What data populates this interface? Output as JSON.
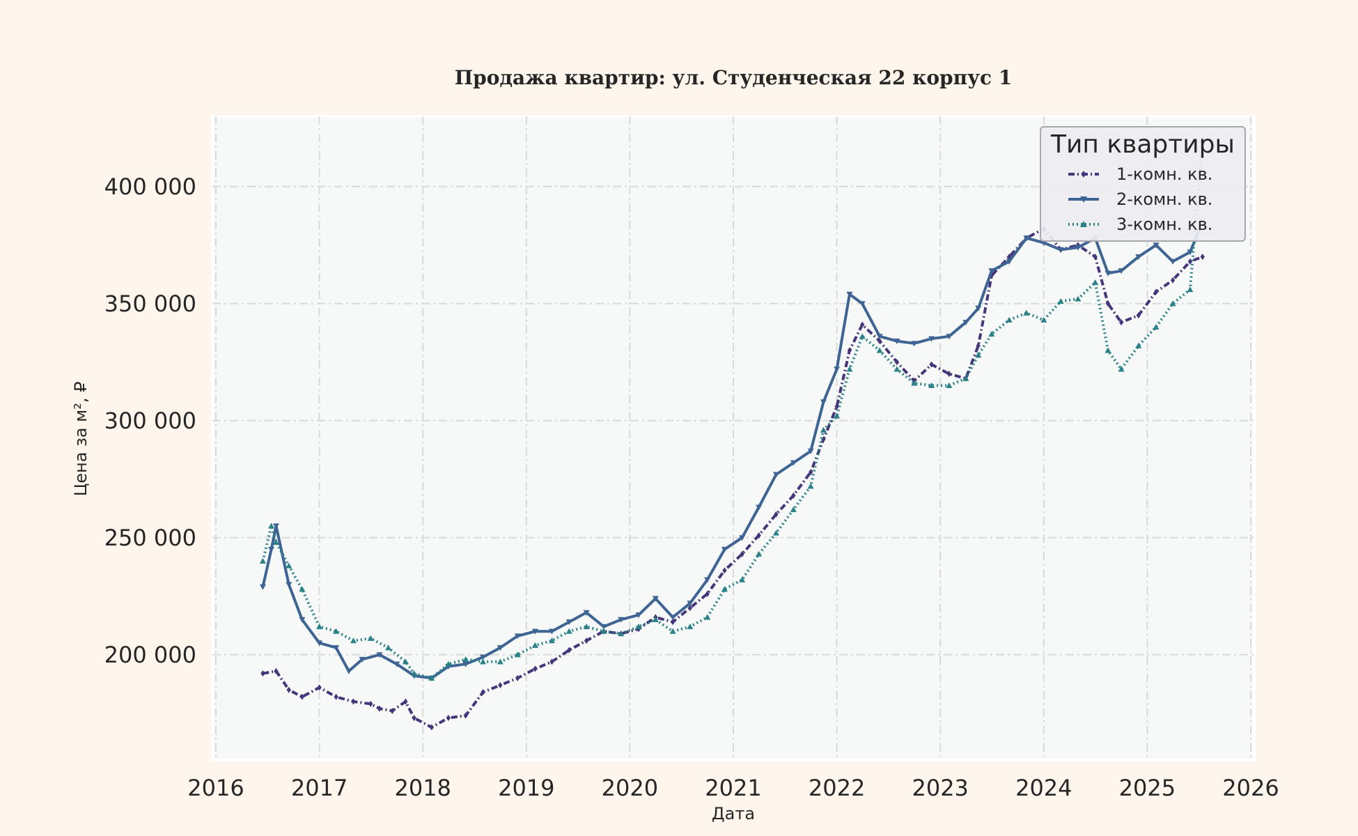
{
  "chart_data": {
    "type": "line",
    "title": "Продажа квартир: ул. Студенческая 22 корпус 1",
    "xlabel": "Дата",
    "ylabel": "Цена за м², ₽",
    "xlim": [
      "2016-01-01",
      "2026-01-01"
    ],
    "ylim": [
      155000,
      430000
    ],
    "x_ticks": [
      "2016",
      "2017",
      "2018",
      "2019",
      "2020",
      "2021",
      "2022",
      "2023",
      "2024",
      "2025",
      "2026"
    ],
    "y_ticks": [
      200000,
      250000,
      300000,
      350000,
      400000
    ],
    "y_tick_labels": [
      "200 000",
      "250 000",
      "300 000",
      "350 000",
      "400 000"
    ],
    "grid": true,
    "legend": {
      "title": "Тип квартиры",
      "placement": "top-right"
    },
    "series": [
      {
        "name": "1-комн. кв.",
        "color": "#45357a",
        "marker": "diamond",
        "line_style": "dash-dot",
        "points": [
          [
            "2016-06-15",
            192000
          ],
          [
            "2016-08-01",
            193000
          ],
          [
            "2016-09-15",
            185000
          ],
          [
            "2016-11-01",
            182000
          ],
          [
            "2017-01-01",
            186000
          ],
          [
            "2017-03-01",
            182000
          ],
          [
            "2017-05-01",
            180000
          ],
          [
            "2017-07-01",
            179000
          ],
          [
            "2017-08-01",
            177000
          ],
          [
            "2017-09-15",
            176000
          ],
          [
            "2017-11-01",
            180000
          ],
          [
            "2017-12-01",
            173000
          ],
          [
            "2018-02-01",
            169000
          ],
          [
            "2018-04-01",
            173000
          ],
          [
            "2018-06-01",
            174000
          ],
          [
            "2018-08-01",
            184000
          ],
          [
            "2018-10-01",
            187000
          ],
          [
            "2018-12-01",
            190000
          ],
          [
            "2019-02-01",
            194000
          ],
          [
            "2019-04-01",
            197000
          ],
          [
            "2019-06-01",
            202000
          ],
          [
            "2019-08-01",
            206000
          ],
          [
            "2019-10-01",
            210000
          ],
          [
            "2019-12-01",
            209000
          ],
          [
            "2020-02-01",
            211000
          ],
          [
            "2020-04-01",
            216000
          ],
          [
            "2020-06-01",
            214000
          ],
          [
            "2020-08-01",
            220000
          ],
          [
            "2020-10-01",
            226000
          ],
          [
            "2020-12-01",
            236000
          ],
          [
            "2021-02-01",
            243000
          ],
          [
            "2021-04-01",
            251000
          ],
          [
            "2021-06-01",
            260000
          ],
          [
            "2021-08-01",
            268000
          ],
          [
            "2021-10-01",
            278000
          ],
          [
            "2021-11-15",
            292000
          ],
          [
            "2022-01-01",
            306000
          ],
          [
            "2022-02-15",
            330000
          ],
          [
            "2022-04-01",
            341000
          ],
          [
            "2022-06-01",
            334000
          ],
          [
            "2022-08-01",
            325000
          ],
          [
            "2022-10-01",
            317000
          ],
          [
            "2022-12-01",
            324000
          ],
          [
            "2023-02-01",
            320000
          ],
          [
            "2023-04-01",
            318000
          ],
          [
            "2023-05-15",
            332000
          ],
          [
            "2023-07-01",
            362000
          ],
          [
            "2023-09-01",
            370000
          ],
          [
            "2023-11-01",
            378000
          ],
          [
            "2024-01-01",
            382000
          ],
          [
            "2024-03-01",
            373000
          ],
          [
            "2024-05-01",
            375000
          ],
          [
            "2024-07-01",
            370000
          ],
          [
            "2024-08-15",
            350000
          ],
          [
            "2024-10-01",
            342000
          ],
          [
            "2024-12-01",
            345000
          ],
          [
            "2025-02-01",
            355000
          ],
          [
            "2025-04-01",
            360000
          ],
          [
            "2025-06-01",
            368000
          ],
          [
            "2025-07-15",
            370000
          ]
        ]
      },
      {
        "name": "2-комн. кв.",
        "color": "#3e6494",
        "marker": "triangle-down",
        "line_style": "solid",
        "points": [
          [
            "2016-06-15",
            229000
          ],
          [
            "2016-07-15",
            245000
          ],
          [
            "2016-08-01",
            255000
          ],
          [
            "2016-09-15",
            230000
          ],
          [
            "2016-11-01",
            215000
          ],
          [
            "2017-01-01",
            205000
          ],
          [
            "2017-03-01",
            203000
          ],
          [
            "2017-04-15",
            193000
          ],
          [
            "2017-06-01",
            198000
          ],
          [
            "2017-08-01",
            200000
          ],
          [
            "2017-10-01",
            196000
          ],
          [
            "2017-12-01",
            191000
          ],
          [
            "2018-02-01",
            190000
          ],
          [
            "2018-04-01",
            195000
          ],
          [
            "2018-06-01",
            196000
          ],
          [
            "2018-08-01",
            199000
          ],
          [
            "2018-10-01",
            203000
          ],
          [
            "2018-12-01",
            208000
          ],
          [
            "2019-02-01",
            210000
          ],
          [
            "2019-04-01",
            210000
          ],
          [
            "2019-06-01",
            214000
          ],
          [
            "2019-08-01",
            218000
          ],
          [
            "2019-10-01",
            212000
          ],
          [
            "2019-12-01",
            215000
          ],
          [
            "2020-02-01",
            217000
          ],
          [
            "2020-04-01",
            224000
          ],
          [
            "2020-06-01",
            216000
          ],
          [
            "2020-08-01",
            222000
          ],
          [
            "2020-10-01",
            232000
          ],
          [
            "2020-12-01",
            245000
          ],
          [
            "2021-02-01",
            250000
          ],
          [
            "2021-04-01",
            263000
          ],
          [
            "2021-06-01",
            277000
          ],
          [
            "2021-08-01",
            282000
          ],
          [
            "2021-10-01",
            287000
          ],
          [
            "2021-11-15",
            308000
          ],
          [
            "2022-01-01",
            322000
          ],
          [
            "2022-02-15",
            354000
          ],
          [
            "2022-04-01",
            350000
          ],
          [
            "2022-06-01",
            336000
          ],
          [
            "2022-08-01",
            334000
          ],
          [
            "2022-10-01",
            333000
          ],
          [
            "2022-12-01",
            335000
          ],
          [
            "2023-02-01",
            336000
          ],
          [
            "2023-04-01",
            342000
          ],
          [
            "2023-05-15",
            348000
          ],
          [
            "2023-07-01",
            364000
          ],
          [
            "2023-09-01",
            368000
          ],
          [
            "2023-11-01",
            378000
          ],
          [
            "2024-01-01",
            376000
          ],
          [
            "2024-03-01",
            373000
          ],
          [
            "2024-05-01",
            374000
          ],
          [
            "2024-07-01",
            378000
          ],
          [
            "2024-08-15",
            363000
          ],
          [
            "2024-10-01",
            364000
          ],
          [
            "2024-12-01",
            370000
          ],
          [
            "2025-02-01",
            375000
          ],
          [
            "2025-04-01",
            368000
          ],
          [
            "2025-06-01",
            372000
          ],
          [
            "2025-07-15",
            385000
          ]
        ]
      },
      {
        "name": "3-комн. кв.",
        "color": "#2a8187",
        "marker": "triangle-up",
        "line_style": "dotted",
        "points": [
          [
            "2016-06-15",
            240000
          ],
          [
            "2016-07-15",
            255000
          ],
          [
            "2016-08-01",
            248000
          ],
          [
            "2016-09-15",
            238000
          ],
          [
            "2016-11-01",
            228000
          ],
          [
            "2017-01-01",
            212000
          ],
          [
            "2017-03-01",
            210000
          ],
          [
            "2017-05-01",
            206000
          ],
          [
            "2017-07-01",
            207000
          ],
          [
            "2017-09-01",
            203000
          ],
          [
            "2017-11-01",
            197000
          ],
          [
            "2017-12-01",
            192000
          ],
          [
            "2018-02-01",
            190000
          ],
          [
            "2018-04-01",
            196000
          ],
          [
            "2018-06-01",
            198000
          ],
          [
            "2018-08-01",
            197000
          ],
          [
            "2018-10-01",
            197000
          ],
          [
            "2018-12-01",
            200000
          ],
          [
            "2019-02-01",
            204000
          ],
          [
            "2019-04-01",
            206000
          ],
          [
            "2019-06-01",
            210000
          ],
          [
            "2019-08-01",
            212000
          ],
          [
            "2019-10-01",
            210000
          ],
          [
            "2019-12-01",
            209000
          ],
          [
            "2020-02-01",
            212000
          ],
          [
            "2020-04-01",
            215000
          ],
          [
            "2020-06-01",
            210000
          ],
          [
            "2020-08-01",
            212000
          ],
          [
            "2020-10-01",
            216000
          ],
          [
            "2020-12-01",
            228000
          ],
          [
            "2021-02-01",
            232000
          ],
          [
            "2021-04-01",
            243000
          ],
          [
            "2021-06-01",
            252000
          ],
          [
            "2021-08-01",
            262000
          ],
          [
            "2021-10-01",
            272000
          ],
          [
            "2021-11-15",
            296000
          ],
          [
            "2022-01-01",
            302000
          ],
          [
            "2022-02-15",
            322000
          ],
          [
            "2022-04-01",
            336000
          ],
          [
            "2022-06-01",
            330000
          ],
          [
            "2022-08-01",
            322000
          ],
          [
            "2022-10-01",
            316000
          ],
          [
            "2022-12-01",
            315000
          ],
          [
            "2023-02-01",
            315000
          ],
          [
            "2023-04-01",
            318000
          ],
          [
            "2023-05-15",
            328000
          ],
          [
            "2023-07-01",
            337000
          ],
          [
            "2023-09-01",
            343000
          ],
          [
            "2023-11-01",
            346000
          ],
          [
            "2024-01-01",
            343000
          ],
          [
            "2024-03-01",
            351000
          ],
          [
            "2024-05-01",
            352000
          ],
          [
            "2024-07-01",
            359000
          ],
          [
            "2024-08-15",
            330000
          ],
          [
            "2024-10-01",
            322000
          ],
          [
            "2024-12-01",
            332000
          ],
          [
            "2025-02-01",
            340000
          ],
          [
            "2025-04-01",
            350000
          ],
          [
            "2025-06-01",
            356000
          ],
          [
            "2025-07-15",
            420000
          ]
        ]
      }
    ]
  }
}
